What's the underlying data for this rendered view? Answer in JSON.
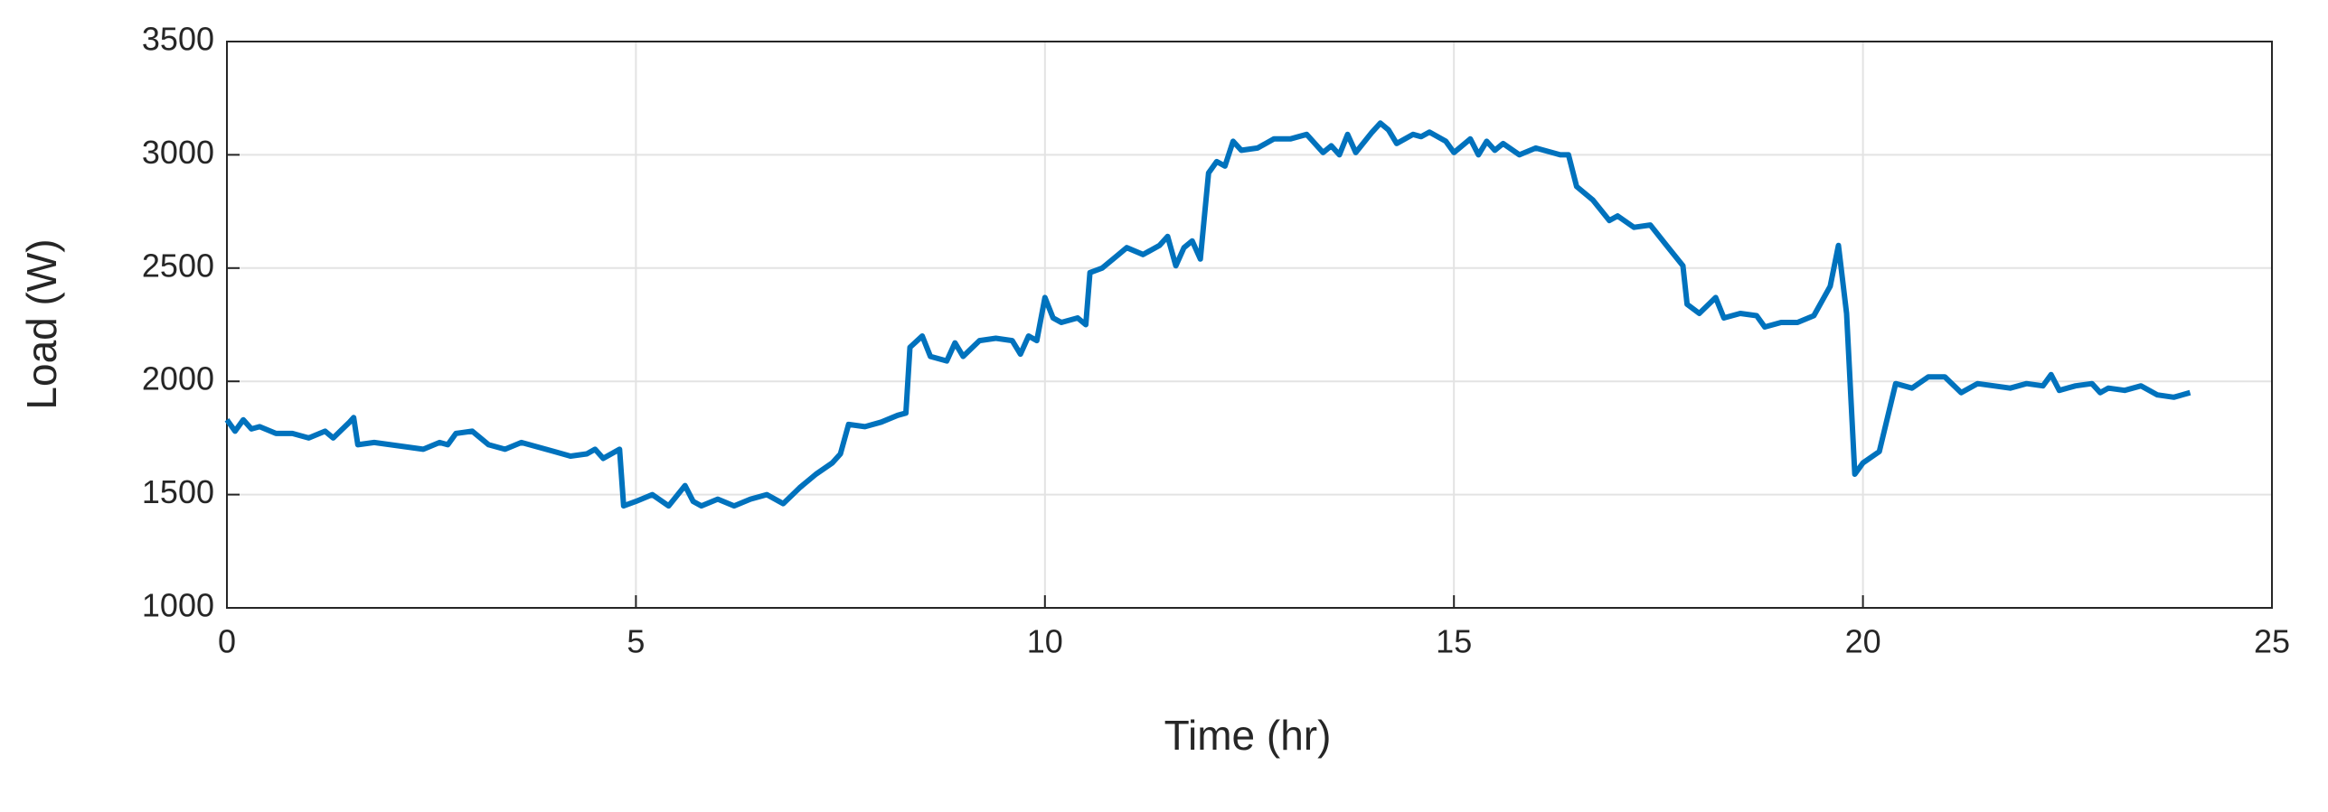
{
  "chart_data": {
    "type": "line",
    "xlabel": "Time (hr)",
    "ylabel": "Load (W)",
    "x": [
      0,
      0.1,
      0.2,
      0.3,
      0.4,
      0.6,
      0.8,
      1.0,
      1.2,
      1.3,
      1.5,
      1.55,
      1.6,
      1.8,
      2.0,
      2.2,
      2.4,
      2.6,
      2.7,
      2.8,
      3.0,
      3.2,
      3.4,
      3.6,
      3.8,
      4.0,
      4.2,
      4.4,
      4.5,
      4.6,
      4.8,
      4.85,
      5.0,
      5.2,
      5.4,
      5.6,
      5.7,
      5.8,
      6.0,
      6.2,
      6.4,
      6.6,
      6.8,
      7.0,
      7.2,
      7.4,
      7.5,
      7.6,
      7.8,
      8.0,
      8.2,
      8.3,
      8.35,
      8.5,
      8.6,
      8.8,
      8.9,
      9.0,
      9.2,
      9.4,
      9.6,
      9.7,
      9.8,
      9.9,
      10.0,
      10.1,
      10.2,
      10.4,
      10.5,
      10.55,
      10.7,
      10.9,
      11.0,
      11.2,
      11.4,
      11.5,
      11.6,
      11.7,
      11.8,
      11.9,
      12.0,
      12.1,
      12.2,
      12.3,
      12.4,
      12.6,
      12.8,
      13.0,
      13.2,
      13.4,
      13.5,
      13.6,
      13.7,
      13.8,
      14.0,
      14.1,
      14.2,
      14.3,
      14.5,
      14.6,
      14.7,
      14.9,
      15.0,
      15.2,
      15.3,
      15.4,
      15.5,
      15.6,
      15.8,
      16.0,
      16.2,
      16.3,
      16.4,
      16.5,
      16.7,
      16.9,
      17.0,
      17.2,
      17.4,
      17.6,
      17.8,
      17.85,
      18.0,
      18.2,
      18.3,
      18.5,
      18.7,
      18.8,
      19.0,
      19.2,
      19.4,
      19.6,
      19.7,
      19.8,
      19.9,
      20.0,
      20.2,
      20.4,
      20.6,
      20.8,
      21.0,
      21.2,
      21.4,
      21.6,
      21.8,
      22.0,
      22.2,
      22.3,
      22.4,
      22.6,
      22.8,
      22.9,
      23.0,
      23.2,
      23.4,
      23.6,
      23.8,
      24.0
    ],
    "series": [
      {
        "color": "#0072bd",
        "values": [
          1830,
          1780,
          1830,
          1790,
          1800,
          1770,
          1770,
          1750,
          1780,
          1750,
          1820,
          1840,
          1720,
          1730,
          1720,
          1710,
          1700,
          1730,
          1720,
          1770,
          1780,
          1720,
          1700,
          1730,
          1710,
          1690,
          1670,
          1680,
          1700,
          1660,
          1700,
          1450,
          1470,
          1500,
          1450,
          1540,
          1470,
          1450,
          1480,
          1450,
          1480,
          1500,
          1460,
          1530,
          1590,
          1640,
          1680,
          1810,
          1800,
          1820,
          1850,
          1860,
          2150,
          2200,
          2110,
          2090,
          2170,
          2110,
          2180,
          2190,
          2180,
          2120,
          2200,
          2180,
          2370,
          2280,
          2260,
          2280,
          2250,
          2480,
          2500,
          2560,
          2590,
          2560,
          2600,
          2640,
          2510,
          2590,
          2620,
          2540,
          2920,
          2970,
          2950,
          3060,
          3020,
          3030,
          3070,
          3070,
          3090,
          3010,
          3040,
          3000,
          3090,
          3010,
          3100,
          3140,
          3110,
          3050,
          3090,
          3080,
          3100,
          3060,
          3010,
          3070,
          3000,
          3060,
          3020,
          3050,
          3000,
          3030,
          3010,
          3000,
          3000,
          2860,
          2800,
          2710,
          2730,
          2680,
          2690,
          2600,
          2510,
          2340,
          2300,
          2370,
          2280,
          2300,
          2290,
          2240,
          2260,
          2260,
          2290,
          2420,
          2600,
          2300,
          1590,
          1640,
          1690,
          1990,
          1970,
          2020,
          2020,
          1950,
          1990,
          1980,
          1970,
          1990,
          1980,
          2030,
          1960,
          1980,
          1990,
          1950,
          1970,
          1960,
          1980,
          1940,
          1930,
          1950
        ]
      }
    ],
    "xlim": [
      0,
      25
    ],
    "xticks": [
      0,
      5,
      10,
      15,
      20,
      25
    ],
    "ylim": [
      1000,
      3500
    ],
    "yticks": [
      1000,
      1500,
      2000,
      2500,
      3000,
      3500
    ],
    "grid": true
  }
}
